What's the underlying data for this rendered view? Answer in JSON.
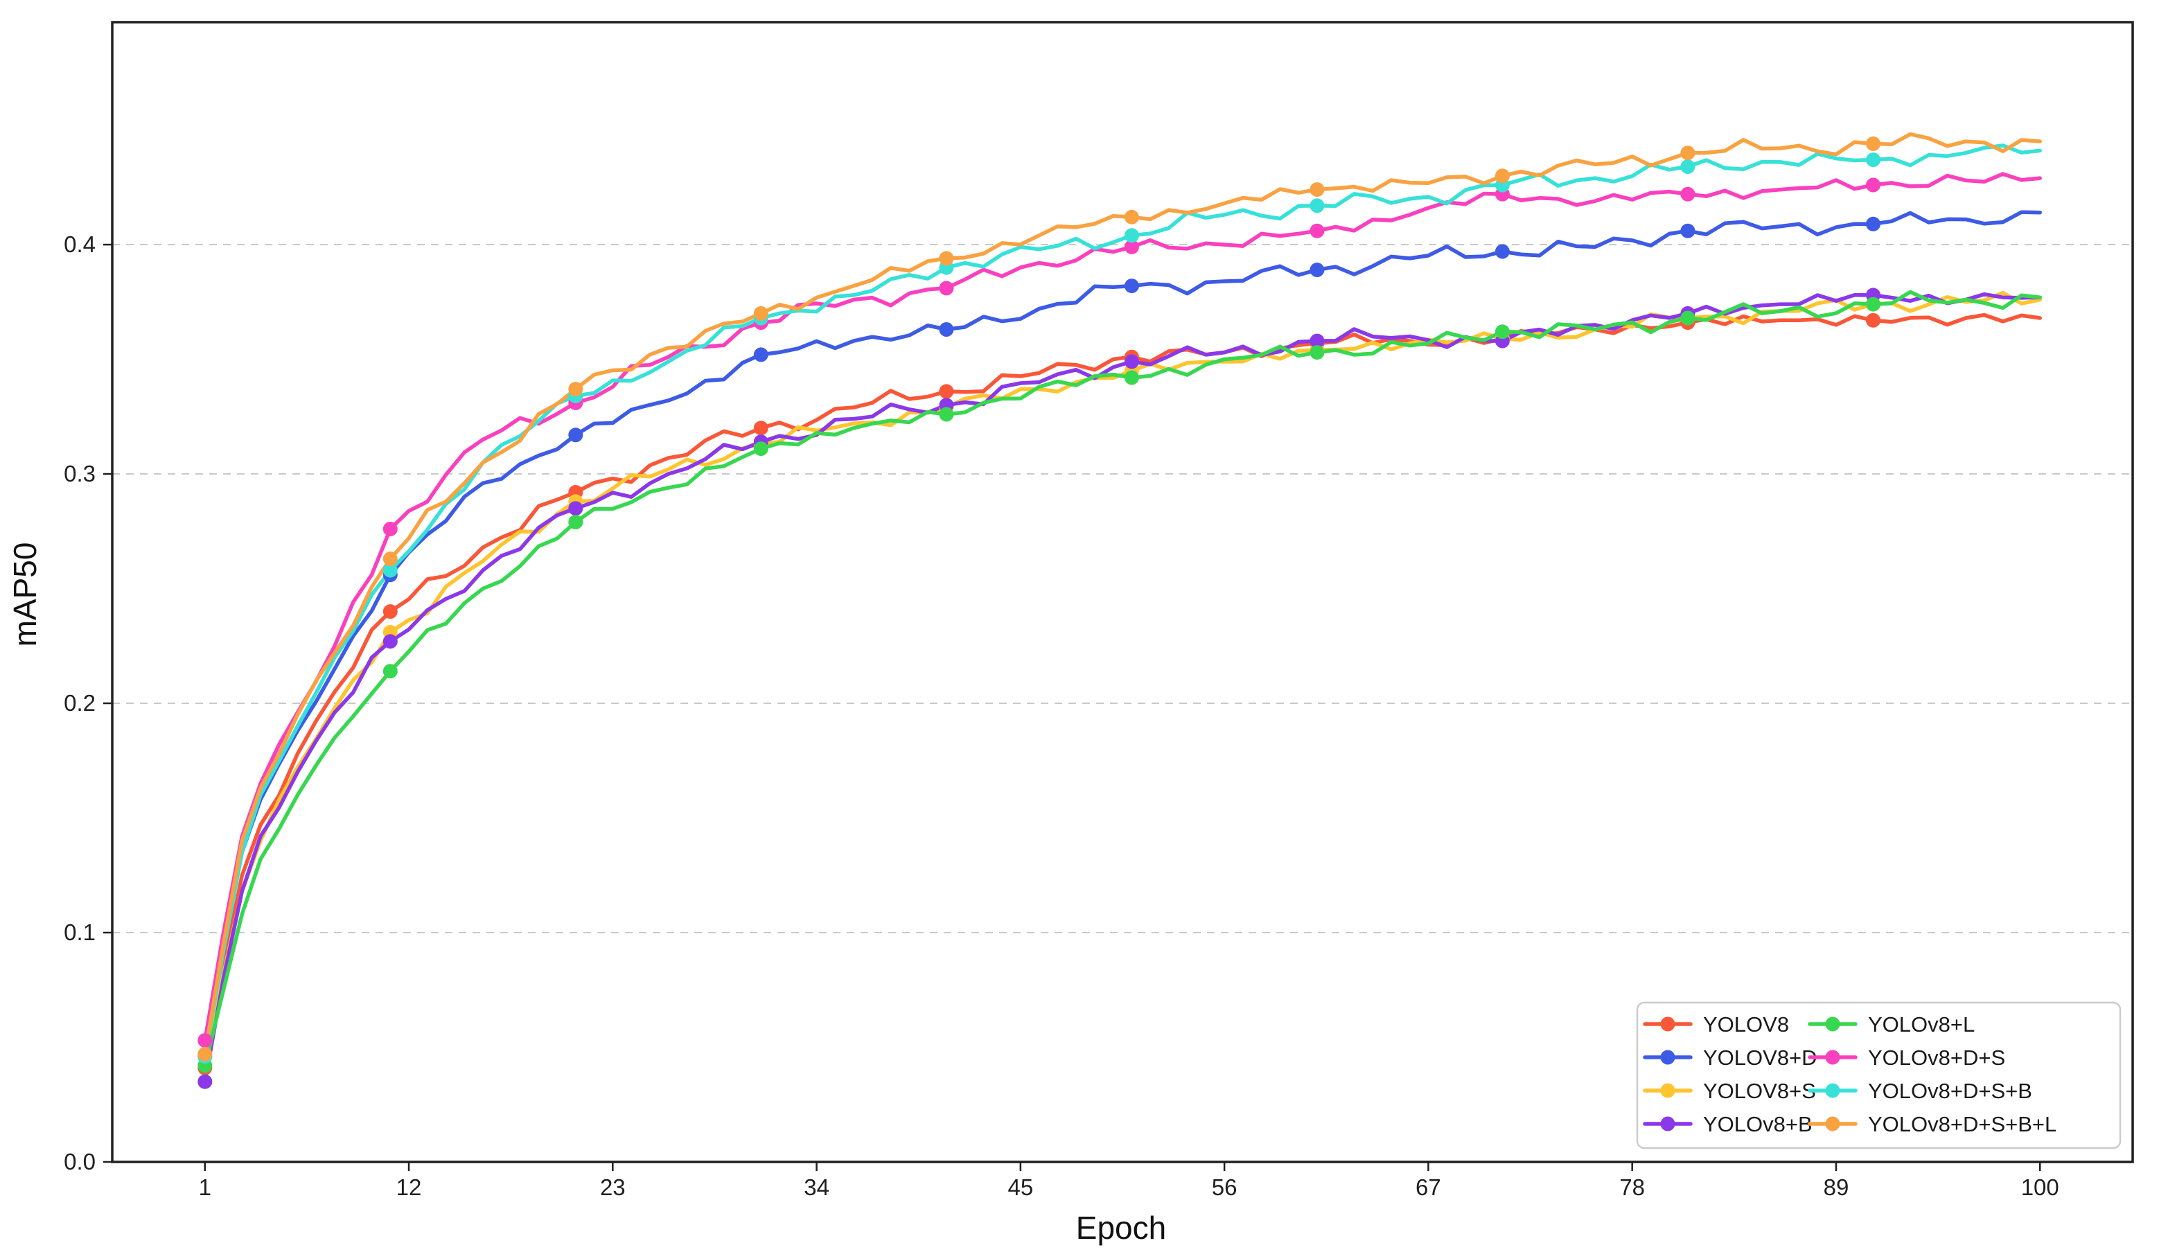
{
  "chart_data": {
    "type": "line",
    "title": "",
    "xlabel": "Epoch",
    "ylabel": "mAP50",
    "xlim": [
      -4,
      105
    ],
    "ylim": [
      0,
      0.497
    ],
    "x_ticks": [
      1,
      12,
      23,
      34,
      45,
      56,
      67,
      78,
      89,
      100
    ],
    "y_tick_labels": [
      "0.0",
      "0.1",
      "0.2",
      "0.3",
      "0.4"
    ],
    "y_tick_values": [
      0.0,
      0.1,
      0.2,
      0.3,
      0.4
    ],
    "grid": "horizontal dashed gridlines at y ticks 0.1-0.4",
    "grid_color": "#c9c9c9",
    "axis_color": "#1f1f1f",
    "legend_position": "lower right",
    "legend_columns": 2,
    "marker": "circle",
    "marker_epochs": [
      1,
      11,
      21,
      31,
      41,
      51,
      61,
      71,
      81,
      91
    ],
    "x": [
      1,
      2,
      3,
      4,
      6,
      8,
      11,
      16,
      21,
      26,
      31,
      36,
      41,
      46,
      51,
      56,
      61,
      66,
      71,
      76,
      81,
      86,
      91,
      96,
      100
    ],
    "series": [
      {
        "name": "YOLOV8",
        "color": "#F95738",
        "values": [
          0.041,
          0.085,
          0.125,
          0.147,
          0.178,
          0.205,
          0.24,
          0.268,
          0.292,
          0.307,
          0.32,
          0.329,
          0.336,
          0.344,
          0.351,
          0.353,
          0.357,
          0.358,
          0.359,
          0.363,
          0.366,
          0.367,
          0.367,
          0.368,
          0.368
        ]
      },
      {
        "name": "YOLOV8+D",
        "color": "#3D5BE5",
        "values": [
          0.046,
          0.095,
          0.135,
          0.158,
          0.188,
          0.215,
          0.256,
          0.296,
          0.317,
          0.332,
          0.352,
          0.358,
          0.363,
          0.372,
          0.382,
          0.384,
          0.389,
          0.394,
          0.397,
          0.399,
          0.406,
          0.408,
          0.409,
          0.411,
          0.414
        ]
      },
      {
        "name": "YOLOV8+S",
        "color": "#FFC42E",
        "values": [
          0.047,
          0.082,
          0.118,
          0.14,
          0.172,
          0.198,
          0.231,
          0.262,
          0.288,
          0.302,
          0.313,
          0.322,
          0.329,
          0.337,
          0.345,
          0.349,
          0.354,
          0.357,
          0.359,
          0.363,
          0.368,
          0.371,
          0.374,
          0.375,
          0.376
        ]
      },
      {
        "name": "YOLOv8+B",
        "color": "#8B38E8",
        "values": [
          0.035,
          0.08,
          0.118,
          0.142,
          0.17,
          0.196,
          0.227,
          0.258,
          0.285,
          0.3,
          0.314,
          0.324,
          0.33,
          0.34,
          0.349,
          0.353,
          0.358,
          0.36,
          0.358,
          0.365,
          0.37,
          0.374,
          0.378,
          0.376,
          0.377
        ]
      },
      {
        "name": "YOLOv8+L",
        "color": "#38D750",
        "values": [
          0.042,
          0.075,
          0.108,
          0.132,
          0.16,
          0.185,
          0.214,
          0.25,
          0.279,
          0.294,
          0.311,
          0.32,
          0.326,
          0.338,
          0.342,
          0.35,
          0.353,
          0.356,
          0.362,
          0.363,
          0.368,
          0.371,
          0.374,
          0.376,
          0.377
        ]
      },
      {
        "name": "YOLOv8+D+S",
        "color": "#F940BE",
        "values": [
          0.053,
          0.1,
          0.142,
          0.165,
          0.196,
          0.225,
          0.276,
          0.315,
          0.331,
          0.351,
          0.366,
          0.376,
          0.381,
          0.392,
          0.399,
          0.4,
          0.406,
          0.413,
          0.422,
          0.419,
          0.422,
          0.424,
          0.426,
          0.428,
          0.429
        ]
      },
      {
        "name": "YOLOv8+D+S+B",
        "color": "#38E1D8",
        "values": [
          0.046,
          0.092,
          0.135,
          0.16,
          0.19,
          0.22,
          0.258,
          0.305,
          0.334,
          0.349,
          0.368,
          0.378,
          0.39,
          0.398,
          0.404,
          0.413,
          0.417,
          0.42,
          0.426,
          0.429,
          0.434,
          0.436,
          0.437,
          0.44,
          0.441
        ]
      },
      {
        "name": "YOLOv8+D+S+B+L",
        "color": "#F9A242",
        "values": [
          0.047,
          0.095,
          0.14,
          0.163,
          0.195,
          0.222,
          0.263,
          0.305,
          0.337,
          0.355,
          0.37,
          0.382,
          0.394,
          0.404,
          0.412,
          0.418,
          0.424,
          0.427,
          0.43,
          0.435,
          0.44,
          0.442,
          0.444,
          0.445,
          0.445
        ]
      }
    ],
    "legend_column_order": [
      [
        0,
        1,
        2,
        3
      ],
      [
        4,
        5,
        6,
        7
      ]
    ]
  }
}
